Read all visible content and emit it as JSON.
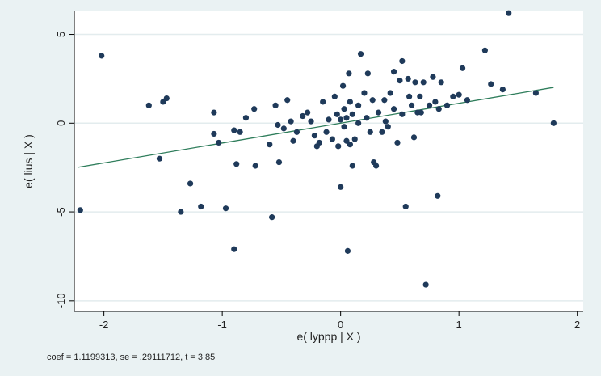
{
  "chart_data": {
    "type": "scatter",
    "title": "",
    "xlabel": "e( lyppp | X )",
    "ylabel": "e( lius | X )",
    "xlim": [
      -2.25,
      2.05
    ],
    "ylim": [
      -10.6,
      6.3
    ],
    "xticks": [
      -2,
      -1,
      0,
      1,
      2
    ],
    "yticks": [
      5,
      0,
      -5,
      -10
    ],
    "xtick_labels": [
      "-2",
      "-1",
      "0",
      "1",
      "2"
    ],
    "ytick_labels": [
      "5",
      "0",
      "-5",
      "-10"
    ],
    "grid": true,
    "note": "coef = 1.1199313, se = .29111712, t = 3.85",
    "fit_line": {
      "intercept": 0,
      "slope": 1.1199313,
      "x_range": [
        -2.22,
        1.8
      ],
      "color": "#2e7d5b"
    },
    "marker_color": "#1f3a5a",
    "series": [
      {
        "points": [
          [
            -2.2,
            -4.9
          ],
          [
            -2.02,
            3.8
          ],
          [
            -1.62,
            1.0
          ],
          [
            -1.53,
            -2.0
          ],
          [
            -1.5,
            1.2
          ],
          [
            -1.47,
            1.4
          ],
          [
            -1.27,
            -3.4
          ],
          [
            -1.35,
            -5.0
          ],
          [
            -1.18,
            -4.7
          ],
          [
            -1.07,
            0.6
          ],
          [
            -1.07,
            -0.6
          ],
          [
            -1.03,
            -1.1
          ],
          [
            -0.97,
            -4.8
          ],
          [
            -0.9,
            -7.1
          ],
          [
            -0.9,
            -0.4
          ],
          [
            -0.88,
            -2.3
          ],
          [
            -0.85,
            -0.5
          ],
          [
            -0.8,
            0.3
          ],
          [
            -0.73,
            0.8
          ],
          [
            -0.72,
            -2.4
          ],
          [
            -0.6,
            -1.2
          ],
          [
            -0.58,
            -5.3
          ],
          [
            -0.55,
            1.0
          ],
          [
            -0.53,
            -0.1
          ],
          [
            -0.52,
            -2.2
          ],
          [
            -0.48,
            -0.3
          ],
          [
            -0.45,
            1.3
          ],
          [
            -0.42,
            0.1
          ],
          [
            -0.4,
            -1.0
          ],
          [
            -0.37,
            -0.5
          ],
          [
            -0.32,
            0.4
          ],
          [
            -0.28,
            0.6
          ],
          [
            -0.25,
            0.1
          ],
          [
            -0.22,
            -0.7
          ],
          [
            -0.2,
            -1.3
          ],
          [
            -0.18,
            -1.1
          ],
          [
            -0.15,
            1.2
          ],
          [
            -0.12,
            -0.5
          ],
          [
            -0.1,
            0.2
          ],
          [
            -0.07,
            -0.9
          ],
          [
            -0.05,
            1.5
          ],
          [
            -0.03,
            0.5
          ],
          [
            -0.02,
            -1.3
          ],
          [
            0.0,
            -3.6
          ],
          [
            0.0,
            0.2
          ],
          [
            0.02,
            2.1
          ],
          [
            0.03,
            0.8
          ],
          [
            0.03,
            -0.2
          ],
          [
            0.05,
            -1.0
          ],
          [
            0.05,
            0.3
          ],
          [
            0.06,
            -7.2
          ],
          [
            0.07,
            2.8
          ],
          [
            0.08,
            1.2
          ],
          [
            0.08,
            -1.2
          ],
          [
            0.1,
            0.5
          ],
          [
            0.1,
            -2.4
          ],
          [
            0.12,
            -0.9
          ],
          [
            0.15,
            1.0
          ],
          [
            0.15,
            0.0
          ],
          [
            0.17,
            3.9
          ],
          [
            0.2,
            1.7
          ],
          [
            0.22,
            0.3
          ],
          [
            0.23,
            2.8
          ],
          [
            0.25,
            -0.5
          ],
          [
            0.27,
            1.3
          ],
          [
            0.28,
            -2.2
          ],
          [
            0.3,
            -2.4
          ],
          [
            0.32,
            0.6
          ],
          [
            0.35,
            -0.5
          ],
          [
            0.37,
            1.3
          ],
          [
            0.38,
            0.1
          ],
          [
            0.4,
            -0.2
          ],
          [
            0.42,
            1.7
          ],
          [
            0.45,
            0.8
          ],
          [
            0.45,
            2.9
          ],
          [
            0.48,
            -1.1
          ],
          [
            0.5,
            2.4
          ],
          [
            0.52,
            0.5
          ],
          [
            0.52,
            3.5
          ],
          [
            0.55,
            -4.7
          ],
          [
            0.57,
            2.5
          ],
          [
            0.58,
            1.5
          ],
          [
            0.6,
            1.0
          ],
          [
            0.62,
            -0.8
          ],
          [
            0.63,
            2.3
          ],
          [
            0.65,
            0.6
          ],
          [
            0.67,
            1.5
          ],
          [
            0.68,
            0.6
          ],
          [
            0.7,
            2.3
          ],
          [
            0.72,
            -9.1
          ],
          [
            0.75,
            1.0
          ],
          [
            0.78,
            2.6
          ],
          [
            0.8,
            1.2
          ],
          [
            0.82,
            -4.1
          ],
          [
            0.83,
            0.8
          ],
          [
            0.85,
            2.3
          ],
          [
            0.9,
            1.0
          ],
          [
            0.95,
            1.5
          ],
          [
            1.0,
            1.6
          ],
          [
            1.03,
            3.1
          ],
          [
            1.07,
            1.3
          ],
          [
            1.22,
            4.1
          ],
          [
            1.27,
            2.2
          ],
          [
            1.37,
            1.9
          ],
          [
            1.42,
            6.2
          ],
          [
            1.65,
            1.7
          ],
          [
            1.8,
            0.0
          ]
        ]
      }
    ]
  }
}
